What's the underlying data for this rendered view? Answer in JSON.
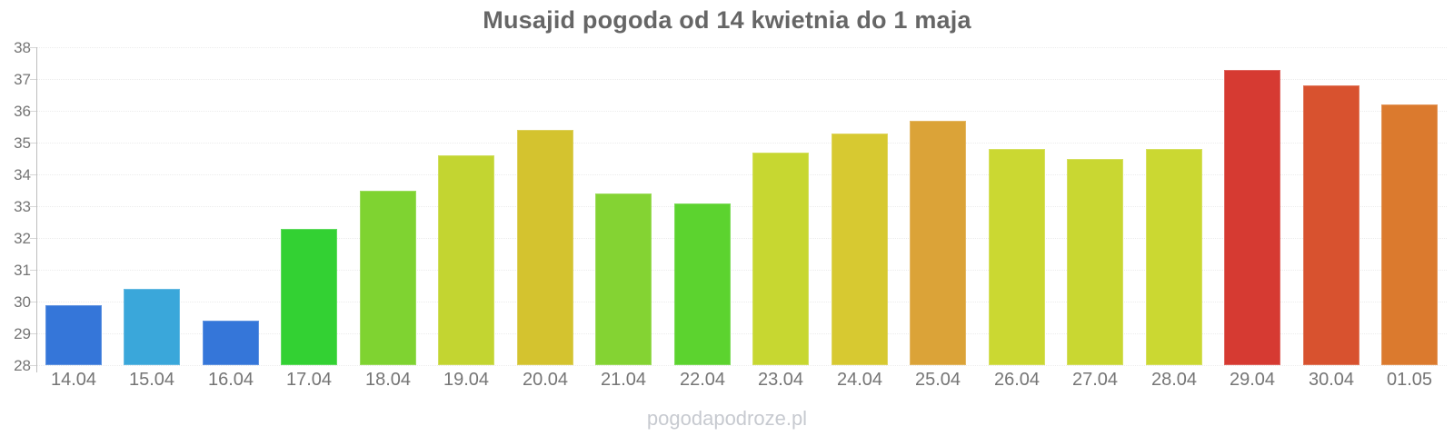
{
  "title": "Musajid pogoda od 14 kwietnia do 1 maja",
  "watermark": "pogodapodroze.pl",
  "colors": {
    "background": "#ffffff",
    "title_text": "#666666",
    "axis_label": "#757575",
    "axis_line": "#bdbdbd",
    "gridline": "#ececec",
    "watermark_text": "#c7cad0"
  },
  "chart_data": {
    "type": "bar",
    "title": "Musajid pogoda od 14 kwietnia do 1 maja",
    "xlabel": "",
    "ylabel": "",
    "ylim": [
      28,
      38
    ],
    "y_ticks": [
      38,
      37,
      36,
      35,
      34,
      33,
      32,
      31,
      30,
      29,
      28
    ],
    "grid": true,
    "legend": false,
    "categories": [
      "14.04",
      "15.04",
      "16.04",
      "17.04",
      "18.04",
      "19.04",
      "20.04",
      "21.04",
      "22.04",
      "23.04",
      "24.04",
      "25.04",
      "26.04",
      "27.04",
      "28.04",
      "29.04",
      "30.04",
      "01.05"
    ],
    "values": [
      29.9,
      30.4,
      29.4,
      32.3,
      33.5,
      34.6,
      35.4,
      33.4,
      33.1,
      34.7,
      35.3,
      35.7,
      34.8,
      34.5,
      34.8,
      37.3,
      36.8,
      36.2
    ],
    "bar_colors": [
      "#3576d9",
      "#3aa7da",
      "#3576d9",
      "#33d133",
      "#7fd331",
      "#c3d531",
      "#d4c32f",
      "#84d333",
      "#5cd32f",
      "#c7d731",
      "#d7c931",
      "#dba338",
      "#cbd832",
      "#c9d732",
      "#cbd832",
      "#d63a32",
      "#d8522f",
      "#db7a2e"
    ]
  }
}
